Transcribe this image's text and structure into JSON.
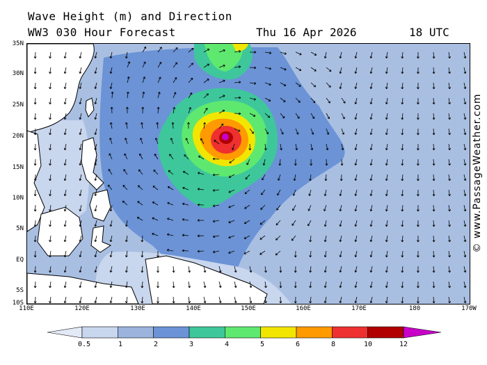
{
  "header": {
    "title": "Wave Height (m) and Direction",
    "subtitle": "WW3 030 Hour Forecast",
    "date": "Thu 16 Apr 2026",
    "time": "18 UTC"
  },
  "credit": "© www.PassageWeather.com",
  "map": {
    "lat_labels": [
      "35N",
      "30N",
      "25N",
      "20N",
      "15N",
      "10N",
      "5N",
      "EQ",
      "5S",
      "10S"
    ],
    "lon_labels": [
      "110E",
      "120E",
      "130E",
      "140E",
      "150E",
      "160E",
      "170E",
      "180",
      "170W"
    ],
    "lat_range": [
      -10,
      35
    ],
    "lon_range": [
      110,
      190
    ],
    "colors": {
      "ocean_low": "#a9bfe2",
      "band_1": "#9bb3dd",
      "band_2": "#6b93d6",
      "band_3": "#3ec79b",
      "band_4": "#5fe870",
      "band_5": "#f2e600",
      "band_6": "#ff9a00",
      "band_8": "#ee3030",
      "band_10": "#b00000",
      "band_12": "#c800c8",
      "land": "#ffffff",
      "calm": "#e3e9f6"
    }
  },
  "colorbar": {
    "labels": [
      "0.5",
      "1",
      "2",
      "3",
      "4",
      "5",
      "6",
      "8",
      "10",
      "12"
    ],
    "colors": [
      "#e3e9f6",
      "#c8d6ee",
      "#9bb3dd",
      "#6b93d6",
      "#3ec79b",
      "#5fe870",
      "#f2e600",
      "#ff9a00",
      "#ee3030",
      "#b00000",
      "#c800c8"
    ]
  }
}
